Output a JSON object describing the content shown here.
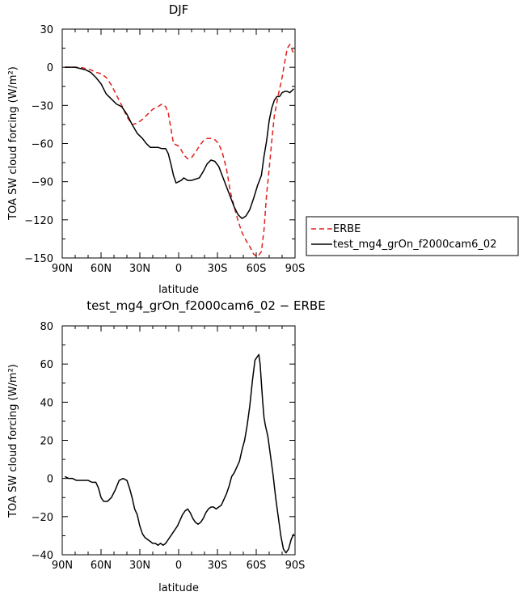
{
  "chart_data": [
    {
      "type": "line",
      "title": "DJF",
      "xlabel": "latitude",
      "ylabel": "TOA SW cloud forcing (W/m²)",
      "xlim": [
        90,
        -90
      ],
      "ylim": [
        -150,
        30
      ],
      "xtick_values": [
        90,
        60,
        30,
        0,
        -30,
        -60,
        -90
      ],
      "xtick_labels": [
        "90N",
        "60N",
        "30N",
        "0",
        "30S",
        "60S",
        "90S"
      ],
      "ytick_values": [
        30,
        0,
        -30,
        -60,
        -90,
        -120,
        -150
      ],
      "ytick_labels": [
        "30",
        "0",
        "−30",
        "−60",
        "−90",
        "−120",
        "−150"
      ],
      "legend_position": "right",
      "series": [
        {
          "name": "ERBE",
          "color": "#e0201b",
          "dash": "dashed",
          "points": [
            [
              88,
              0
            ],
            [
              84,
              0
            ],
            [
              80,
              0
            ],
            [
              76,
              0
            ],
            [
              72,
              -1
            ],
            [
              68,
              -2
            ],
            [
              64,
              -4
            ],
            [
              60,
              -5
            ],
            [
              56,
              -8
            ],
            [
              52,
              -14
            ],
            [
              48,
              -22
            ],
            [
              44,
              -30
            ],
            [
              40,
              -39
            ],
            [
              36,
              -45
            ],
            [
              32,
              -44
            ],
            [
              28,
              -41
            ],
            [
              24,
              -37
            ],
            [
              20,
              -33
            ],
            [
              16,
              -31
            ],
            [
              13,
              -29
            ],
            [
              10,
              -31
            ],
            [
              8,
              -36
            ],
            [
              6,
              -48
            ],
            [
              4,
              -60
            ],
            [
              2,
              -61
            ],
            [
              0,
              -62
            ],
            [
              -2,
              -65
            ],
            [
              -4,
              -69
            ],
            [
              -7,
              -72
            ],
            [
              -10,
              -71
            ],
            [
              -13,
              -67
            ],
            [
              -16,
              -62
            ],
            [
              -19,
              -58
            ],
            [
              -22,
              -56
            ],
            [
              -25,
              -56
            ],
            [
              -28,
              -57
            ],
            [
              -31,
              -60
            ],
            [
              -34,
              -68
            ],
            [
              -37,
              -80
            ],
            [
              -40,
              -98
            ],
            [
              -43,
              -110
            ],
            [
              -46,
              -121
            ],
            [
              -49,
              -130
            ],
            [
              -52,
              -136
            ],
            [
              -55,
              -141
            ],
            [
              -58,
              -147
            ],
            [
              -61,
              -149
            ],
            [
              -64,
              -145
            ],
            [
              -66,
              -128
            ],
            [
              -68,
              -100
            ],
            [
              -70,
              -80
            ],
            [
              -72,
              -58
            ],
            [
              -74,
              -38
            ],
            [
              -77,
              -22
            ],
            [
              -80,
              -8
            ],
            [
              -82,
              4
            ],
            [
              -84,
              15
            ],
            [
              -86,
              18
            ],
            [
              -88,
              13
            ],
            [
              -89,
              10
            ]
          ]
        },
        {
          "name": "test_mg4_grOn_f2000cam6_02",
          "color": "#000000",
          "dash": "solid",
          "points": [
            [
              88,
              0
            ],
            [
              84,
              0
            ],
            [
              80,
              0
            ],
            [
              76,
              -1
            ],
            [
              72,
              -2
            ],
            [
              68,
              -4
            ],
            [
              64,
              -8
            ],
            [
              60,
              -13
            ],
            [
              56,
              -21
            ],
            [
              52,
              -25
            ],
            [
              48,
              -29
            ],
            [
              44,
              -31
            ],
            [
              40,
              -37
            ],
            [
              36,
              -45
            ],
            [
              32,
              -52
            ],
            [
              28,
              -56
            ],
            [
              25,
              -60
            ],
            [
              22,
              -63
            ],
            [
              19,
              -63
            ],
            [
              16,
              -63
            ],
            [
              13,
              -64
            ],
            [
              10,
              -64
            ],
            [
              8,
              -68
            ],
            [
              6,
              -76
            ],
            [
              4,
              -85
            ],
            [
              2,
              -91
            ],
            [
              0,
              -90
            ],
            [
              -2,
              -89
            ],
            [
              -4,
              -87
            ],
            [
              -7,
              -89
            ],
            [
              -10,
              -89
            ],
            [
              -13,
              -88
            ],
            [
              -16,
              -87
            ],
            [
              -19,
              -82
            ],
            [
              -22,
              -76
            ],
            [
              -25,
              -73
            ],
            [
              -28,
              -74
            ],
            [
              -31,
              -78
            ],
            [
              -34,
              -86
            ],
            [
              -37,
              -94
            ],
            [
              -40,
              -102
            ],
            [
              -43,
              -110
            ],
            [
              -46,
              -116
            ],
            [
              -49,
              -119
            ],
            [
              -52,
              -117
            ],
            [
              -55,
              -112
            ],
            [
              -58,
              -103
            ],
            [
              -61,
              -93
            ],
            [
              -64,
              -85
            ],
            [
              -66,
              -70
            ],
            [
              -68,
              -58
            ],
            [
              -70,
              -42
            ],
            [
              -72,
              -32
            ],
            [
              -74,
              -26
            ],
            [
              -76,
              -23
            ],
            [
              -78,
              -23
            ],
            [
              -80,
              -20
            ],
            [
              -82,
              -19
            ],
            [
              -84,
              -19
            ],
            [
              -86,
              -20
            ],
            [
              -88,
              -18
            ],
            [
              -89,
              -17
            ]
          ]
        }
      ]
    },
    {
      "type": "line",
      "title": "test_mg4_grOn_f2000cam6_02 − ERBE",
      "xlabel": "latitude",
      "ylabel": "TOA SW cloud forcing (W/m²)",
      "xlim": [
        90,
        -90
      ],
      "ylim": [
        -40,
        80
      ],
      "xtick_values": [
        90,
        60,
        30,
        0,
        -30,
        -60,
        -90
      ],
      "xtick_labels": [
        "90N",
        "60N",
        "30N",
        "0",
        "30S",
        "60S",
        "90S"
      ],
      "ytick_values": [
        80,
        60,
        40,
        20,
        0,
        -20,
        -40
      ],
      "ytick_labels": [
        "80",
        "60",
        "40",
        "20",
        "0",
        "−20",
        "−40"
      ],
      "series": [
        {
          "color": "#000000",
          "dash": "solid",
          "points": [
            [
              88,
              1
            ],
            [
              85,
              0
            ],
            [
              82,
              0
            ],
            [
              79,
              -1
            ],
            [
              76,
              -1
            ],
            [
              73,
              -1
            ],
            [
              70,
              -1
            ],
            [
              67,
              -2
            ],
            [
              64,
              -2
            ],
            [
              62,
              -5
            ],
            [
              60,
              -10
            ],
            [
              58,
              -12
            ],
            [
              55,
              -12
            ],
            [
              52,
              -10
            ],
            [
              49,
              -6
            ],
            [
              46,
              -1
            ],
            [
              43,
              0
            ],
            [
              40,
              -1
            ],
            [
              38,
              -5
            ],
            [
              36,
              -10
            ],
            [
              34,
              -16
            ],
            [
              32,
              -19
            ],
            [
              30,
              -25
            ],
            [
              28,
              -29
            ],
            [
              26,
              -31
            ],
            [
              24,
              -32
            ],
            [
              22,
              -33
            ],
            [
              20,
              -34
            ],
            [
              18,
              -34
            ],
            [
              16,
              -35
            ],
            [
              14,
              -34
            ],
            [
              12,
              -35
            ],
            [
              10,
              -34
            ],
            [
              8,
              -32
            ],
            [
              5,
              -29
            ],
            [
              3,
              -27
            ],
            [
              1,
              -25
            ],
            [
              -1,
              -22
            ],
            [
              -3,
              -19
            ],
            [
              -5,
              -17
            ],
            [
              -7,
              -16
            ],
            [
              -9,
              -18
            ],
            [
              -11,
              -21
            ],
            [
              -13,
              -23
            ],
            [
              -15,
              -24
            ],
            [
              -17,
              -23
            ],
            [
              -19,
              -21
            ],
            [
              -21,
              -18
            ],
            [
              -23,
              -16
            ],
            [
              -25,
              -15
            ],
            [
              -27,
              -15
            ],
            [
              -29,
              -16
            ],
            [
              -31,
              -15
            ],
            [
              -33,
              -14
            ],
            [
              -35,
              -11
            ],
            [
              -37,
              -8
            ],
            [
              -39,
              -4
            ],
            [
              -41,
              1
            ],
            [
              -43,
              3
            ],
            [
              -45,
              6
            ],
            [
              -47,
              9
            ],
            [
              -49,
              15
            ],
            [
              -51,
              20
            ],
            [
              -53,
              28
            ],
            [
              -55,
              38
            ],
            [
              -57,
              51
            ],
            [
              -59,
              62
            ],
            [
              -61,
              64
            ],
            [
              -62,
              65
            ],
            [
              -63,
              60
            ],
            [
              -64,
              50
            ],
            [
              -65,
              40
            ],
            [
              -66,
              32
            ],
            [
              -67,
              28
            ],
            [
              -69,
              22
            ],
            [
              -71,
              12
            ],
            [
              -73,
              2
            ],
            [
              -75,
              -10
            ],
            [
              -77,
              -20
            ],
            [
              -79,
              -30
            ],
            [
              -81,
              -37
            ],
            [
              -83,
              -39
            ],
            [
              -85,
              -37
            ],
            [
              -87,
              -32
            ],
            [
              -89,
              -29
            ]
          ]
        }
      ]
    }
  ]
}
